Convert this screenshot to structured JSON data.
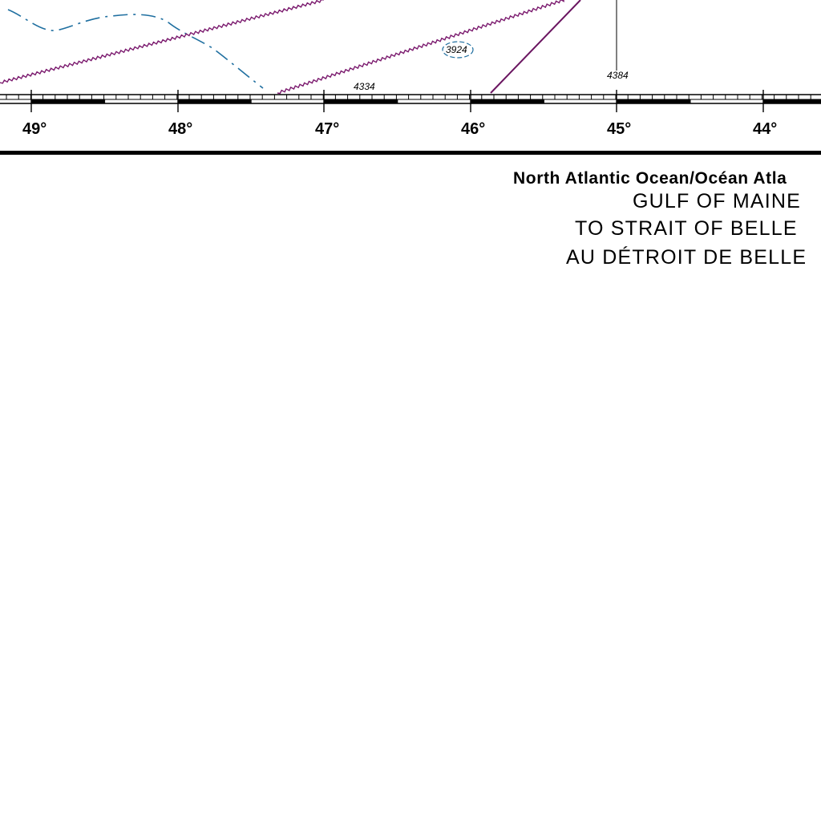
{
  "map": {
    "longitude_labels": [
      "49°",
      "48°",
      "47°",
      "46°",
      "45°",
      "44°"
    ],
    "soundings": [
      "4334",
      "3924",
      "4384"
    ],
    "colors": {
      "magenta_line": "#7b1a6e",
      "blue_contour": "#1f6fa0",
      "ink": "#000000"
    }
  },
  "title_block": {
    "line1": "North Atlantic Ocean/Océan Atla",
    "line2": "GULF OF MAINE",
    "line3": "TO STRAIT OF BELLE",
    "line4": "AU DÉTROIT DE BELLE"
  }
}
